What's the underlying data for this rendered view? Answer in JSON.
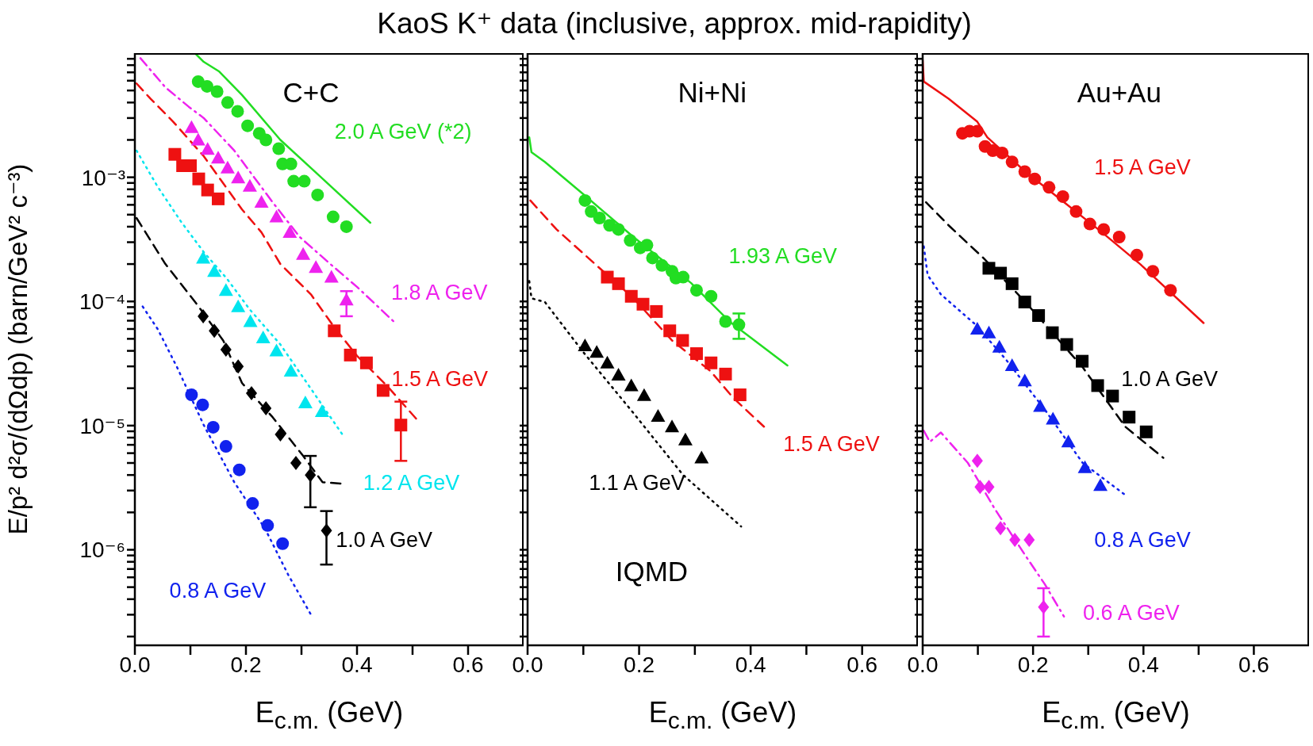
{
  "chart_data": [
    {
      "type": "scatter",
      "title": "KaoS K⁺ data (inclusive, approx. mid-rapidity)",
      "xlabel": "E$_{c.m.}$ (GeV)",
      "ylabel": "E/p² d²σ/(dΩdp) (barn/GeV² c⁻³)",
      "log": "y",
      "annotations": [
        "C+C"
      ],
      "xlim": [
        0,
        0.7
      ],
      "xticks": [
        {
          "value": 0,
          "label": "0.0"
        },
        {
          "value": 0.1,
          "label": null
        },
        {
          "value": 0.2,
          "label": "0.2"
        },
        {
          "value": 0.3,
          "label": null
        },
        {
          "value": 0.4,
          "label": "0.4"
        },
        {
          "value": 0.5,
          "label": null
        },
        {
          "value": 0.6,
          "label": "0.6"
        }
      ],
      "ylim": [
        1.7e-07,
        0.01
      ],
      "yticks": [
        {
          "value": 2e-07,
          "label": null
        },
        {
          "value": 3e-07,
          "label": null
        },
        {
          "value": 4e-07,
          "label": null
        },
        {
          "value": 5e-07,
          "label": null
        },
        {
          "value": 6e-07,
          "label": null
        },
        {
          "value": 7e-07,
          "label": null
        },
        {
          "value": 8e-07,
          "label": null
        },
        {
          "value": 9e-07,
          "label": null
        },
        {
          "value": 1e-06,
          "label": "10⁻⁶"
        },
        {
          "value": 2e-06,
          "label": null
        },
        {
          "value": 3e-06,
          "label": null
        },
        {
          "value": 4e-06,
          "label": null
        },
        {
          "value": 5e-06,
          "label": null
        },
        {
          "value": 6e-06,
          "label": null
        },
        {
          "value": 7e-06,
          "label": null
        },
        {
          "value": 8e-06,
          "label": null
        },
        {
          "value": 9e-06,
          "label": null
        },
        {
          "value": 1e-05,
          "label": "10⁻⁵"
        },
        {
          "value": 2e-05,
          "label": null
        },
        {
          "value": 3e-05,
          "label": null
        },
        {
          "value": 4e-05,
          "label": null
        },
        {
          "value": 5e-05,
          "label": null
        },
        {
          "value": 6e-05,
          "label": null
        },
        {
          "value": 7e-05,
          "label": null
        },
        {
          "value": 8e-05,
          "label": null
        },
        {
          "value": 9e-05,
          "label": null
        },
        {
          "value": 0.0001,
          "label": "10⁻⁴"
        },
        {
          "value": 0.0002,
          "label": null
        },
        {
          "value": 0.0003,
          "label": null
        },
        {
          "value": 0.0004,
          "label": null
        },
        {
          "value": 0.0005,
          "label": null
        },
        {
          "value": 0.0006,
          "label": null
        },
        {
          "value": 0.0007,
          "label": null
        },
        {
          "value": 0.0008,
          "label": null
        },
        {
          "value": 0.0009,
          "label": null
        },
        {
          "value": 0.001,
          "label": "10⁻³"
        },
        {
          "value": 0.002,
          "label": null
        },
        {
          "value": 0.003,
          "label": null
        },
        {
          "value": 0.004,
          "label": null
        },
        {
          "value": 0.005,
          "label": null
        },
        {
          "value": 0.006,
          "label": null
        },
        {
          "value": 0.007,
          "label": null
        },
        {
          "value": 0.008,
          "label": null
        },
        {
          "value": 0.009,
          "label": null
        }
      ],
      "series": [
        {
          "name": "2.0 A GeV (*2)",
          "type": "scatter",
          "marker": "circle",
          "color": "#22dd22",
          "x": [
            0.114,
            0.13,
            0.148,
            0.167,
            0.185,
            0.203,
            0.224,
            0.236,
            0.259,
            0.266,
            0.281,
            0.286,
            0.305,
            0.329,
            0.357,
            0.381
          ],
          "values": [
            0.0059,
            0.0054,
            0.0049,
            0.004,
            0.0034,
            0.0026,
            0.00226,
            0.002,
            0.0017,
            0.00128,
            0.00128,
            0.00093,
            0.00093,
            0.00072,
            0.00048,
            0.0004
          ]
        },
        {
          "name": "1.8 A GeV",
          "type": "scatter",
          "marker": "triangle",
          "color": "#ee22ee",
          "x": [
            0.102,
            0.114,
            0.131,
            0.15,
            0.167,
            0.186,
            0.207,
            0.228,
            0.255,
            0.279,
            0.303,
            0.326,
            0.354,
            0.381
          ],
          "values": [
            0.00252,
            0.002,
            0.00168,
            0.00143,
            0.00119,
            0.00099,
            0.00085,
            0.00063,
            0.00048,
            0.00036,
            0.00024,
            0.000188,
            0.000157,
            0.000103
          ],
          "errors": [
            null,
            null,
            null,
            null,
            null,
            null,
            null,
            null,
            null,
            null,
            null,
            null,
            null,
            [
              7.6e-05,
              0.000121
            ]
          ]
        },
        {
          "name": "1.5 A GeV",
          "type": "scatter",
          "marker": "square",
          "color": "#ee1111",
          "x": [
            0.072,
            0.086,
            0.1,
            0.115,
            0.131,
            0.15,
            0.359,
            0.388,
            0.417,
            0.447,
            0.479
          ],
          "values": [
            0.00153,
            0.00124,
            0.00124,
            0.00097,
            0.00079,
            0.00067,
            5.8e-05,
            3.7e-05,
            3.2e-05,
            1.92e-05,
            1.01e-05
          ],
          "errors": [
            null,
            null,
            null,
            null,
            null,
            null,
            null,
            null,
            null,
            null,
            [
              5.2e-06,
              1.56e-05
            ]
          ]
        },
        {
          "name": "1.2 A GeV",
          "type": "scatter",
          "marker": "triangle",
          "color": "#00e5ee",
          "x": [
            0.123,
            0.143,
            0.164,
            0.186,
            0.208,
            0.231,
            0.255,
            0.281,
            0.307,
            0.337
          ],
          "values": [
            0.000224,
            0.000175,
            0.000123,
            9.1e-05,
            6.9e-05,
            5.1e-05,
            4e-05,
            2.75e-05,
            1.53e-05,
            1.3e-05
          ]
        },
        {
          "name": "1.0 A GeV",
          "type": "scatter",
          "marker": "diamond",
          "color": "#000000",
          "x": [
            0.123,
            0.143,
            0.164,
            0.186,
            0.21,
            0.236,
            0.262,
            0.29,
            0.316,
            0.345
          ],
          "values": [
            7.6e-05,
            5.8e-05,
            4.1e-05,
            3e-05,
            1.82e-05,
            1.38e-05,
            8.5e-06,
            5e-06,
            4e-06,
            1.43e-06
          ],
          "errors": [
            null,
            null,
            null,
            null,
            null,
            null,
            null,
            null,
            [
              2.2e-06,
              5.7e-06
            ],
            [
              7.6e-07,
              2.05e-06
            ]
          ]
        },
        {
          "name": "0.8 A GeV",
          "type": "scatter",
          "marker": "circle",
          "color": "#1122ee",
          "x": [
            0.102,
            0.122,
            0.141,
            0.164,
            0.188,
            0.212,
            0.239,
            0.266
          ],
          "values": [
            1.77e-05,
            1.47e-05,
            9.7e-06,
            6.8e-06,
            4.4e-06,
            2.36e-06,
            1.57e-06,
            1.12e-06
          ]
        },
        {
          "type": "line",
          "line_style": "solid",
          "color": "#22dd22",
          "x": [
            0.11,
            0.124,
            0.152,
            0.193,
            0.262,
            0.331,
            0.424
          ],
          "values": [
            0.0098,
            0.0085,
            0.0071,
            0.0046,
            0.002,
            0.00104,
            0.00043
          ]
        },
        {
          "type": "line",
          "line_style": "dashdot",
          "color": "#ee22ee",
          "x": [
            0.01,
            0.055,
            0.097,
            0.124,
            0.179,
            0.248,
            0.297,
            0.352,
            0.4,
            0.466
          ],
          "values": [
            0.0091,
            0.0053,
            0.0037,
            0.003,
            0.00164,
            0.00063,
            0.00033,
            0.0002,
            0.000131,
            6.9e-05
          ]
        },
        {
          "type": "line",
          "line_style": "dashed",
          "color": "#ee1111",
          "x": [
            0.003,
            0.028,
            0.069,
            0.124,
            0.193,
            0.228,
            0.262,
            0.317,
            0.359,
            0.4,
            0.455,
            0.507
          ],
          "values": [
            0.0057,
            0.0043,
            0.0028,
            0.00148,
            0.00055,
            0.00036,
            0.0002,
            0.000114,
            6.2e-05,
            3.65e-05,
            2.07e-05,
            1.13e-05
          ]
        },
        {
          "type": "line",
          "line_style": "dotted",
          "color": "#00e5ee",
          "x": [
            0.003,
            0.041,
            0.083,
            0.124,
            0.166,
            0.207,
            0.262,
            0.31,
            0.376
          ],
          "values": [
            0.00164,
            0.00084,
            0.00044,
            0.00025,
            0.000152,
            8.6e-05,
            4.5e-05,
            2.2e-05,
            8.2e-06
          ]
        },
        {
          "type": "line",
          "line_style": "dashed",
          "color": "#000000",
          "x": [
            0.003,
            0.055,
            0.114,
            0.159,
            0.193,
            0.248,
            0.303,
            0.338,
            0.376
          ],
          "values": [
            0.00047,
            0.0002,
            9.2e-05,
            4.85e-05,
            2.2e-05,
            1.17e-05,
            5.7e-06,
            3.5e-06,
            3.4e-06
          ]
        },
        {
          "type": "line",
          "line_style": "dotted",
          "color": "#1122ee",
          "x": [
            0.014,
            0.041,
            0.076,
            0.124,
            0.179,
            0.234,
            0.276,
            0.319
          ],
          "values": [
            9.1e-05,
            6e-05,
            2.95e-05,
            1.01e-05,
            3.5e-06,
            1.49e-06,
            6.3e-07,
            2.9e-07
          ]
        }
      ]
    },
    {
      "type": "scatter",
      "xlabel": "E$_{c.m.}$ (GeV)",
      "log": "y",
      "tick_labels": "x",
      "annotations": [
        "Ni+Ni",
        "IQMD"
      ],
      "xlim": [
        0,
        0.7
      ],
      "xticks": [
        {
          "value": 0,
          "label": "0.0"
        },
        {
          "value": 0.1,
          "label": null
        },
        {
          "value": 0.2,
          "label": "0.2"
        },
        {
          "value": 0.3,
          "label": null
        },
        {
          "value": 0.4,
          "label": "0.4"
        },
        {
          "value": 0.5,
          "label": null
        },
        {
          "value": 0.6,
          "label": "0.6"
        }
      ],
      "ylim": [
        1.7e-07,
        0.01
      ],
      "yticks": [
        {
          "value": 2e-07,
          "label": null
        },
        {
          "value": 3e-07,
          "label": null
        },
        {
          "value": 4e-07,
          "label": null
        },
        {
          "value": 5e-07,
          "label": null
        },
        {
          "value": 6e-07,
          "label": null
        },
        {
          "value": 7e-07,
          "label": null
        },
        {
          "value": 8e-07,
          "label": null
        },
        {
          "value": 9e-07,
          "label": null
        },
        {
          "value": 1e-06,
          "label": null
        },
        {
          "value": 2e-06,
          "label": null
        },
        {
          "value": 3e-06,
          "label": null
        },
        {
          "value": 4e-06,
          "label": null
        },
        {
          "value": 5e-06,
          "label": null
        },
        {
          "value": 6e-06,
          "label": null
        },
        {
          "value": 7e-06,
          "label": null
        },
        {
          "value": 8e-06,
          "label": null
        },
        {
          "value": 9e-06,
          "label": null
        },
        {
          "value": 1e-05,
          "label": null
        },
        {
          "value": 2e-05,
          "label": null
        },
        {
          "value": 3e-05,
          "label": null
        },
        {
          "value": 4e-05,
          "label": null
        },
        {
          "value": 5e-05,
          "label": null
        },
        {
          "value": 6e-05,
          "label": null
        },
        {
          "value": 7e-05,
          "label": null
        },
        {
          "value": 8e-05,
          "label": null
        },
        {
          "value": 9e-05,
          "label": null
        },
        {
          "value": 0.0001,
          "label": null
        },
        {
          "value": 0.0002,
          "label": null
        },
        {
          "value": 0.0003,
          "label": null
        },
        {
          "value": 0.0004,
          "label": null
        },
        {
          "value": 0.0005,
          "label": null
        },
        {
          "value": 0.0006,
          "label": null
        },
        {
          "value": 0.0007,
          "label": null
        },
        {
          "value": 0.0008,
          "label": null
        },
        {
          "value": 0.0009,
          "label": null
        },
        {
          "value": 0.001,
          "label": null
        },
        {
          "value": 0.002,
          "label": null
        },
        {
          "value": 0.003,
          "label": null
        },
        {
          "value": 0.004,
          "label": null
        },
        {
          "value": 0.005,
          "label": null
        },
        {
          "value": 0.006,
          "label": null
        },
        {
          "value": 0.007,
          "label": null
        },
        {
          "value": 0.008,
          "label": null
        },
        {
          "value": 0.009,
          "label": null
        }
      ],
      "series": [
        {
          "name": "1.93 A GeV",
          "type": "scatter",
          "marker": "circle",
          "color": "#22dd22",
          "x": [
            0.103,
            0.114,
            0.129,
            0.147,
            0.163,
            0.184,
            0.202,
            0.214,
            0.224,
            0.241,
            0.259,
            0.266,
            0.279,
            0.303,
            0.329,
            0.355,
            0.379
          ],
          "values": [
            0.00065,
            0.00053,
            0.00047,
            0.00041,
            0.00038,
            0.00031,
            0.00027,
            0.000284,
            0.000224,
            0.000195,
            0.000175,
            0.000154,
            0.000157,
            0.000123,
            0.00011,
            6.9e-05,
            6.5e-05
          ],
          "errors": [
            null,
            null,
            null,
            null,
            null,
            null,
            null,
            null,
            null,
            null,
            null,
            null,
            null,
            null,
            null,
            null,
            [
              5e-05,
              8e-05
            ]
          ]
        },
        {
          "name": "1.5 A GeV",
          "type": "scatter",
          "marker": "square",
          "color": "#ee1111",
          "x": [
            0.143,
            0.163,
            0.186,
            0.207,
            0.231,
            0.255,
            0.278,
            0.303,
            0.329,
            0.355,
            0.381
          ],
          "values": [
            0.000157,
            0.000139,
            0.00011,
            9.5e-05,
            8.3e-05,
            5.8e-05,
            4.85e-05,
            3.8e-05,
            3.2e-05,
            2.6e-05,
            1.77e-05
          ]
        },
        {
          "name": "1.1 A GeV",
          "type": "scatter",
          "marker": "triangle",
          "color": "#000000",
          "x": [
            0.103,
            0.124,
            0.143,
            0.163,
            0.186,
            0.209,
            0.234,
            0.259,
            0.283,
            0.312
          ],
          "values": [
            4.4e-05,
            3.9e-05,
            3.2e-05,
            2.56e-05,
            2.1e-05,
            1.75e-05,
            1.19e-05,
            9.8e-06,
            7.7e-06,
            5.5e-06
          ]
        },
        {
          "type": "line",
          "line_style": "solid",
          "color": "#22dd22",
          "x": [
            0.003,
            0.007,
            0.031,
            0.1,
            0.19,
            0.293,
            0.362,
            0.466
          ],
          "values": [
            0.0021,
            0.00159,
            0.00133,
            0.00073,
            0.00033,
            0.000141,
            6.9e-05,
            3.05e-05
          ]
        },
        {
          "type": "line",
          "line_style": "dashed",
          "color": "#ee1111",
          "x": [
            0.005,
            0.052,
            0.121,
            0.19,
            0.259,
            0.328,
            0.369,
            0.424
          ],
          "values": [
            0.00065,
            0.00038,
            0.0002,
            0.000106,
            4.85e-05,
            2.75e-05,
            1.67e-05,
            9.8e-06
          ]
        },
        {
          "type": "line",
          "line_style": "dotted",
          "color": "#000000",
          "x": [
            0.003,
            0.007,
            0.031,
            0.1,
            0.19,
            0.279,
            0.383
          ],
          "values": [
            0.000146,
            0.000106,
            9.9e-05,
            3.9e-05,
            1.26e-05,
            4e-06,
            1.54e-06
          ]
        }
      ]
    },
    {
      "type": "scatter",
      "xlabel": "E$_{c.m.}$ (GeV)",
      "log": "y",
      "tick_labels": "x",
      "annotations": [
        "Au+Au"
      ],
      "xlim": [
        0,
        0.7
      ],
      "xticks": [
        {
          "value": 0,
          "label": "0.0"
        },
        {
          "value": 0.1,
          "label": null
        },
        {
          "value": 0.2,
          "label": "0.2"
        },
        {
          "value": 0.3,
          "label": null
        },
        {
          "value": 0.4,
          "label": "0.4"
        },
        {
          "value": 0.5,
          "label": null
        },
        {
          "value": 0.6,
          "label": "0.6"
        }
      ],
      "ylim": [
        1.7e-07,
        0.01
      ],
      "yticks": [
        {
          "value": 2e-07,
          "label": null
        },
        {
          "value": 3e-07,
          "label": null
        },
        {
          "value": 4e-07,
          "label": null
        },
        {
          "value": 5e-07,
          "label": null
        },
        {
          "value": 6e-07,
          "label": null
        },
        {
          "value": 7e-07,
          "label": null
        },
        {
          "value": 8e-07,
          "label": null
        },
        {
          "value": 9e-07,
          "label": null
        },
        {
          "value": 1e-06,
          "label": null
        },
        {
          "value": 2e-06,
          "label": null
        },
        {
          "value": 3e-06,
          "label": null
        },
        {
          "value": 4e-06,
          "label": null
        },
        {
          "value": 5e-06,
          "label": null
        },
        {
          "value": 6e-06,
          "label": null
        },
        {
          "value": 7e-06,
          "label": null
        },
        {
          "value": 8e-06,
          "label": null
        },
        {
          "value": 9e-06,
          "label": null
        },
        {
          "value": 1e-05,
          "label": null
        },
        {
          "value": 2e-05,
          "label": null
        },
        {
          "value": 3e-05,
          "label": null
        },
        {
          "value": 4e-05,
          "label": null
        },
        {
          "value": 5e-05,
          "label": null
        },
        {
          "value": 6e-05,
          "label": null
        },
        {
          "value": 7e-05,
          "label": null
        },
        {
          "value": 8e-05,
          "label": null
        },
        {
          "value": 9e-05,
          "label": null
        },
        {
          "value": 0.0001,
          "label": null
        },
        {
          "value": 0.0002,
          "label": null
        },
        {
          "value": 0.0003,
          "label": null
        },
        {
          "value": 0.0004,
          "label": null
        },
        {
          "value": 0.0005,
          "label": null
        },
        {
          "value": 0.0006,
          "label": null
        },
        {
          "value": 0.0007,
          "label": null
        },
        {
          "value": 0.0008,
          "label": null
        },
        {
          "value": 0.0009,
          "label": null
        },
        {
          "value": 0.001,
          "label": null
        },
        {
          "value": 0.002,
          "label": null
        },
        {
          "value": 0.003,
          "label": null
        },
        {
          "value": 0.004,
          "label": null
        },
        {
          "value": 0.005,
          "label": null
        },
        {
          "value": 0.006,
          "label": null
        },
        {
          "value": 0.007,
          "label": null
        },
        {
          "value": 0.008,
          "label": null
        },
        {
          "value": 0.009,
          "label": null
        }
      ],
      "series": [
        {
          "name": "1.5 A GeV",
          "type": "scatter",
          "marker": "circle",
          "color": "#ee1111",
          "x": [
            0.072,
            0.085,
            0.099,
            0.113,
            0.127,
            0.144,
            0.162,
            0.185,
            0.203,
            0.229,
            0.254,
            0.278,
            0.303,
            0.328,
            0.356,
            0.388,
            0.417,
            0.449
          ],
          "values": [
            0.00226,
            0.00235,
            0.00235,
            0.00177,
            0.00164,
            0.00157,
            0.00133,
            0.00111,
            0.00097,
            0.00083,
            0.0007,
            0.00053,
            0.00042,
            0.00038,
            0.00033,
            0.000236,
            0.000175,
            0.000123
          ]
        },
        {
          "name": "1.0 A GeV",
          "type": "scatter",
          "marker": "square",
          "color": "#000000",
          "x": [
            0.12,
            0.141,
            0.162,
            0.185,
            0.21,
            0.235,
            0.261,
            0.289,
            0.317,
            0.344,
            0.374,
            0.405
          ],
          "values": [
            0.000185,
            0.000169,
            0.000139,
            9.9e-05,
            7.7e-05,
            5.6e-05,
            4.5e-05,
            3.3e-05,
            2.1e-05,
            1.73e-05,
            1.17e-05,
            8.9e-06
          ]
        },
        {
          "name": "0.8 A GeV",
          "type": "scatter",
          "marker": "triangle",
          "color": "#1122ee",
          "x": [
            0.099,
            0.12,
            0.139,
            0.162,
            0.185,
            0.213,
            0.236,
            0.264,
            0.294,
            0.322
          ],
          "values": [
            6e-05,
            5.6e-05,
            4.3e-05,
            3.05e-05,
            2.3e-05,
            1.43e-05,
            1.13e-05,
            7.4e-06,
            4.6e-06,
            3.3e-06
          ]
        },
        {
          "name": "0.6 A GeV",
          "type": "scatter",
          "marker": "diamond",
          "color": "#ee22ee",
          "x": [
            0.099,
            0.104,
            0.12,
            0.141,
            0.167,
            0.193,
            0.219
          ],
          "values": [
            5.2e-06,
            3.2e-06,
            3.2e-06,
            1.49e-06,
            1.2e-06,
            1.2e-06,
            3.45e-07
          ],
          "errors": [
            null,
            null,
            null,
            null,
            null,
            null,
            [
              2e-07,
              4.9e-07
            ]
          ]
        },
        {
          "type": "line",
          "line_style": "solid",
          "color": "#ee1111",
          "x": [
            0,
            0.002,
            0.047,
            0.099,
            0.117,
            0.186,
            0.256,
            0.325,
            0.394,
            0.509
          ],
          "values": [
            0.0088,
            0.0059,
            0.0043,
            0.0028,
            0.0021,
            0.00111,
            0.00063,
            0.00036,
            0.0002,
            6.7e-05
          ]
        },
        {
          "type": "line",
          "line_style": "dashed",
          "color": "#000000",
          "x": [
            0.006,
            0.047,
            0.11,
            0.186,
            0.29,
            0.367,
            0.436
          ],
          "values": [
            0.00063,
            0.00041,
            0.000224,
            9.9e-05,
            2.95e-05,
            9.8e-06,
            5.5e-06
          ]
        },
        {
          "type": "line",
          "line_style": "dotted",
          "color": "#1122ee",
          "x": [
            0.002,
            0.009,
            0.033,
            0.096,
            0.151,
            0.221,
            0.29,
            0.37
          ],
          "values": [
            0.000278,
            0.000163,
            0.000114,
            6.5e-05,
            3.4e-05,
            1.35e-05,
            5e-06,
            2.7e-06
          ]
        },
        {
          "type": "line",
          "line_style": "dashdot",
          "color": "#ee22ee",
          "x": [
            0.002,
            0.013,
            0.033,
            0.082,
            0.131,
            0.186,
            0.221,
            0.256
          ],
          "values": [
            9.1e-06,
            7.4e-06,
            8.8e-06,
            5e-06,
            2.12e-06,
            9e-07,
            5.3e-07,
            2.9e-07
          ]
        }
      ]
    }
  ]
}
